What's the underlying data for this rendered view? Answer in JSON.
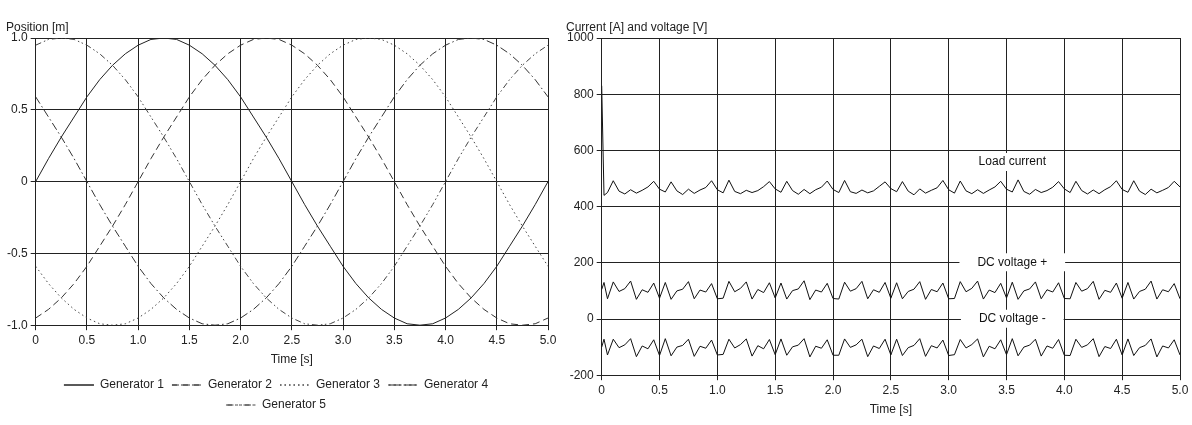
{
  "chart_data": [
    {
      "type": "line",
      "ylabel": "Position [m]",
      "xlabel": "Time [s]",
      "x": [
        0,
        0.125,
        0.25,
        0.375,
        0.5,
        0.625,
        0.75,
        0.875,
        1,
        1.125,
        1.25,
        1.375,
        1.5,
        1.625,
        1.75,
        1.875,
        2,
        2.125,
        2.25,
        2.375,
        2.5,
        2.625,
        2.75,
        2.875,
        3,
        3.125,
        3.25,
        3.375,
        3.5,
        3.625,
        3.75,
        3.875,
        4,
        4.125,
        4.25,
        4.375,
        4.5,
        4.625,
        4.75,
        4.875,
        5
      ],
      "series": [
        {
          "name": "Generator 1",
          "color": "#222222",
          "line_style": "solid",
          "values": [
            0,
            0.16,
            0.31,
            0.45,
            0.59,
            0.71,
            0.81,
            0.89,
            0.95,
            0.99,
            1,
            0.99,
            0.95,
            0.89,
            0.81,
            0.71,
            0.59,
            0.45,
            0.31,
            0.16,
            0,
            -0.16,
            -0.31,
            -0.45,
            -0.59,
            -0.71,
            -0.81,
            -0.89,
            -0.95,
            -0.99,
            -1,
            -0.99,
            -0.95,
            -0.89,
            -0.81,
            -0.71,
            -0.59,
            -0.45,
            -0.31,
            -0.16,
            0
          ]
        },
        {
          "name": "Generator 2",
          "color": "#333333",
          "line_style": "dashed",
          "values": [
            -0.95,
            -0.89,
            -0.81,
            -0.71,
            -0.59,
            -0.45,
            -0.31,
            -0.16,
            0,
            0.16,
            0.31,
            0.45,
            0.59,
            0.71,
            0.81,
            0.89,
            0.95,
            0.99,
            1,
            0.99,
            0.95,
            0.89,
            0.81,
            0.71,
            0.59,
            0.45,
            0.31,
            0.16,
            0,
            -0.16,
            -0.31,
            -0.45,
            -0.59,
            -0.71,
            -0.81,
            -0.89,
            -0.95,
            -0.99,
            -1,
            -0.99,
            -0.95
          ]
        },
        {
          "name": "Generator 3",
          "color": "#444444",
          "line_style": "dotted",
          "values": [
            -0.59,
            -0.71,
            -0.81,
            -0.89,
            -0.95,
            -0.99,
            -1,
            -0.99,
            -0.95,
            -0.89,
            -0.81,
            -0.71,
            -0.59,
            -0.45,
            -0.31,
            -0.16,
            0,
            0.16,
            0.31,
            0.45,
            0.59,
            0.71,
            0.81,
            0.89,
            0.95,
            0.99,
            1,
            0.99,
            0.95,
            0.89,
            0.81,
            0.71,
            0.59,
            0.45,
            0.31,
            0.16,
            0,
            -0.16,
            -0.31,
            -0.45,
            -0.59
          ]
        },
        {
          "name": "Generator 4",
          "color": "#333333",
          "line_style": "dashdot",
          "values": [
            0.59,
            0.45,
            0.31,
            0.16,
            0,
            -0.16,
            -0.31,
            -0.45,
            -0.59,
            -0.71,
            -0.81,
            -0.89,
            -0.95,
            -0.99,
            -1,
            -0.99,
            -0.95,
            -0.89,
            -0.81,
            -0.71,
            -0.59,
            -0.45,
            -0.31,
            -0.16,
            0,
            0.16,
            0.31,
            0.45,
            0.59,
            0.71,
            0.81,
            0.89,
            0.95,
            0.99,
            1,
            0.99,
            0.95,
            0.89,
            0.81,
            0.71,
            0.59
          ]
        },
        {
          "name": "Generator 5",
          "color": "#444444",
          "line_style": "dashdotdot",
          "values": [
            0.95,
            0.99,
            1,
            0.99,
            0.95,
            0.89,
            0.81,
            0.71,
            0.59,
            0.45,
            0.31,
            0.16,
            0,
            -0.16,
            -0.31,
            -0.45,
            -0.59,
            -0.71,
            -0.81,
            -0.89,
            -0.95,
            -0.99,
            -1,
            -0.99,
            -0.95,
            -0.89,
            -0.81,
            -0.71,
            -0.59,
            -0.45,
            -0.31,
            -0.16,
            0,
            0.16,
            0.31,
            0.45,
            0.59,
            0.71,
            0.81,
            0.89,
            0.95
          ]
        }
      ],
      "xlim": [
        0,
        5
      ],
      "ylim": [
        -1,
        1
      ],
      "xticks": [
        0,
        0.5,
        {
          "value": 1,
          "label": "1.0"
        },
        1.5,
        {
          "value": 2,
          "label": "2.0"
        },
        2.5,
        {
          "value": 3,
          "label": "3.0"
        },
        3.5,
        {
          "value": 4,
          "label": "4.0"
        },
        4.5,
        {
          "value": 5,
          "label": "5.0"
        }
      ],
      "yticks": [
        {
          "value": -1,
          "label": "-1.0"
        },
        -0.5,
        0,
        0.5,
        {
          "value": 1,
          "label": "1.0"
        }
      ],
      "grid": true,
      "legend": "bottom",
      "marker": "none"
    },
    {
      "type": "line",
      "ylabel": "Current [A] and voltage [V]",
      "xlabel": "Time [s]",
      "x": [
        0,
        0.02,
        0.05,
        0.1,
        0.15,
        0.2,
        0.25,
        0.3,
        0.35,
        0.4,
        0.45,
        0.5,
        0.55,
        0.6,
        0.65,
        0.7,
        0.75,
        0.8,
        0.85,
        0.9,
        0.95,
        1,
        1.05,
        1.1,
        1.15,
        1.2,
        1.25,
        1.3,
        1.35,
        1.4,
        1.45,
        1.5,
        1.55,
        1.6,
        1.65,
        1.7,
        1.75,
        1.8,
        1.85,
        1.9,
        1.95,
        2,
        2.05,
        2.1,
        2.15,
        2.2,
        2.25,
        2.3,
        2.35,
        2.4,
        2.45,
        2.5,
        2.55,
        2.6,
        2.65,
        2.7,
        2.75,
        2.8,
        2.85,
        2.9,
        2.95,
        3,
        3.05,
        3.1,
        3.15,
        3.2,
        3.25,
        3.3,
        3.35,
        3.4,
        3.45,
        3.5,
        3.55,
        3.6,
        3.65,
        3.7,
        3.75,
        3.8,
        3.85,
        3.9,
        3.95,
        4,
        4.05,
        4.1,
        4.15,
        4.2,
        4.25,
        4.3,
        4.35,
        4.4,
        4.45,
        4.5,
        4.55,
        4.6,
        4.65,
        4.7,
        4.75,
        4.8,
        4.85,
        4.9,
        4.95,
        5
      ],
      "series": [
        {
          "name": "Load current",
          "color": "#111111",
          "values": [
            830,
            440,
            450,
            492,
            455,
            445,
            460,
            448,
            458,
            470,
            490,
            462,
            452,
            488,
            456,
            443,
            462,
            447,
            459,
            468,
            492,
            460,
            449,
            494,
            454,
            446,
            458,
            450,
            457,
            471,
            489,
            463,
            451,
            490,
            457,
            444,
            461,
            446,
            460,
            469,
            491,
            461,
            450,
            493,
            453,
            447,
            459,
            449,
            456,
            472,
            488,
            464,
            453,
            489,
            455,
            442,
            463,
            448,
            458,
            467,
            493,
            460,
            448,
            491,
            456,
            446,
            460,
            447,
            459,
            470,
            490,
            462,
            452,
            495,
            454,
            444,
            461,
            450,
            457,
            469,
            489,
            463,
            450,
            490,
            457,
            445,
            459,
            446,
            460,
            471,
            492,
            461,
            451,
            492,
            455,
            443,
            462,
            449,
            458,
            468,
            490,
            470
          ]
        },
        {
          "name": "DC voltage +",
          "color": "#111111",
          "values": [
            105,
            130,
            72,
            132,
            98,
            108,
            135,
            70,
            104,
            95,
            128,
            74,
            130,
            70,
            100,
            106,
            133,
            72,
            103,
            96,
            126,
            72,
            74,
            134,
            97,
            109,
            132,
            71,
            105,
            94,
            129,
            75,
            128,
            71,
            101,
            107,
            136,
            69,
            103,
            96,
            127,
            73,
            71,
            131,
            99,
            108,
            134,
            72,
            104,
            95,
            130,
            74,
            129,
            72,
            98,
            106,
            133,
            70,
            105,
            97,
            128,
            72,
            73,
            133,
            97,
            109,
            135,
            71,
            103,
            94,
            127,
            75,
            131,
            70,
            100,
            107,
            132,
            72,
            104,
            96,
            129,
            73,
            72,
            130,
            99,
            108,
            134,
            70,
            102,
            95,
            128,
            74,
            130,
            71,
            98,
            106,
            135,
            71,
            104,
            97,
            126,
            72
          ]
        },
        {
          "name": "DC voltage -",
          "color": "#111111",
          "values": [
            -100,
            -72,
            -128,
            -72,
            -102,
            -92,
            -70,
            -134,
            -96,
            -106,
            -74,
            -130,
            -70,
            -131,
            -100,
            -94,
            -72,
            -133,
            -97,
            -104,
            -75,
            -128,
            -126,
            -72,
            -103,
            -91,
            -71,
            -132,
            -95,
            -106,
            -73,
            -127,
            -71,
            -129,
            -99,
            -93,
            -70,
            -135,
            -97,
            -104,
            -74,
            -129,
            -129,
            -71,
            -101,
            -92,
            -72,
            -134,
            -96,
            -105,
            -72,
            -128,
            -72,
            -130,
            -102,
            -94,
            -70,
            -133,
            -95,
            -103,
            -75,
            -130,
            -127,
            -73,
            -103,
            -91,
            -71,
            -135,
            -97,
            -106,
            -74,
            -127,
            -70,
            -131,
            -100,
            -93,
            -72,
            -132,
            -96,
            -104,
            -73,
            -129,
            -130,
            -72,
            -101,
            -92,
            -70,
            -134,
            -98,
            -105,
            -72,
            -128,
            -71,
            -130,
            -102,
            -94,
            -71,
            -135,
            -96,
            -103,
            -74,
            -128
          ]
        }
      ],
      "xlim": [
        0,
        5
      ],
      "ylim": [
        -200,
        1000
      ],
      "xticks": [
        0,
        0.5,
        {
          "value": 1,
          "label": "1.0"
        },
        1.5,
        {
          "value": 2,
          "label": "2.0"
        },
        2.5,
        {
          "value": 3,
          "label": "3.0"
        },
        3.5,
        {
          "value": 4,
          "label": "4.0"
        },
        4.5,
        {
          "value": 5,
          "label": "5.0"
        }
      ],
      "yticks": [
        -200,
        0,
        200,
        400,
        600,
        800,
        1000
      ],
      "grid": true,
      "marker": "none"
    }
  ]
}
